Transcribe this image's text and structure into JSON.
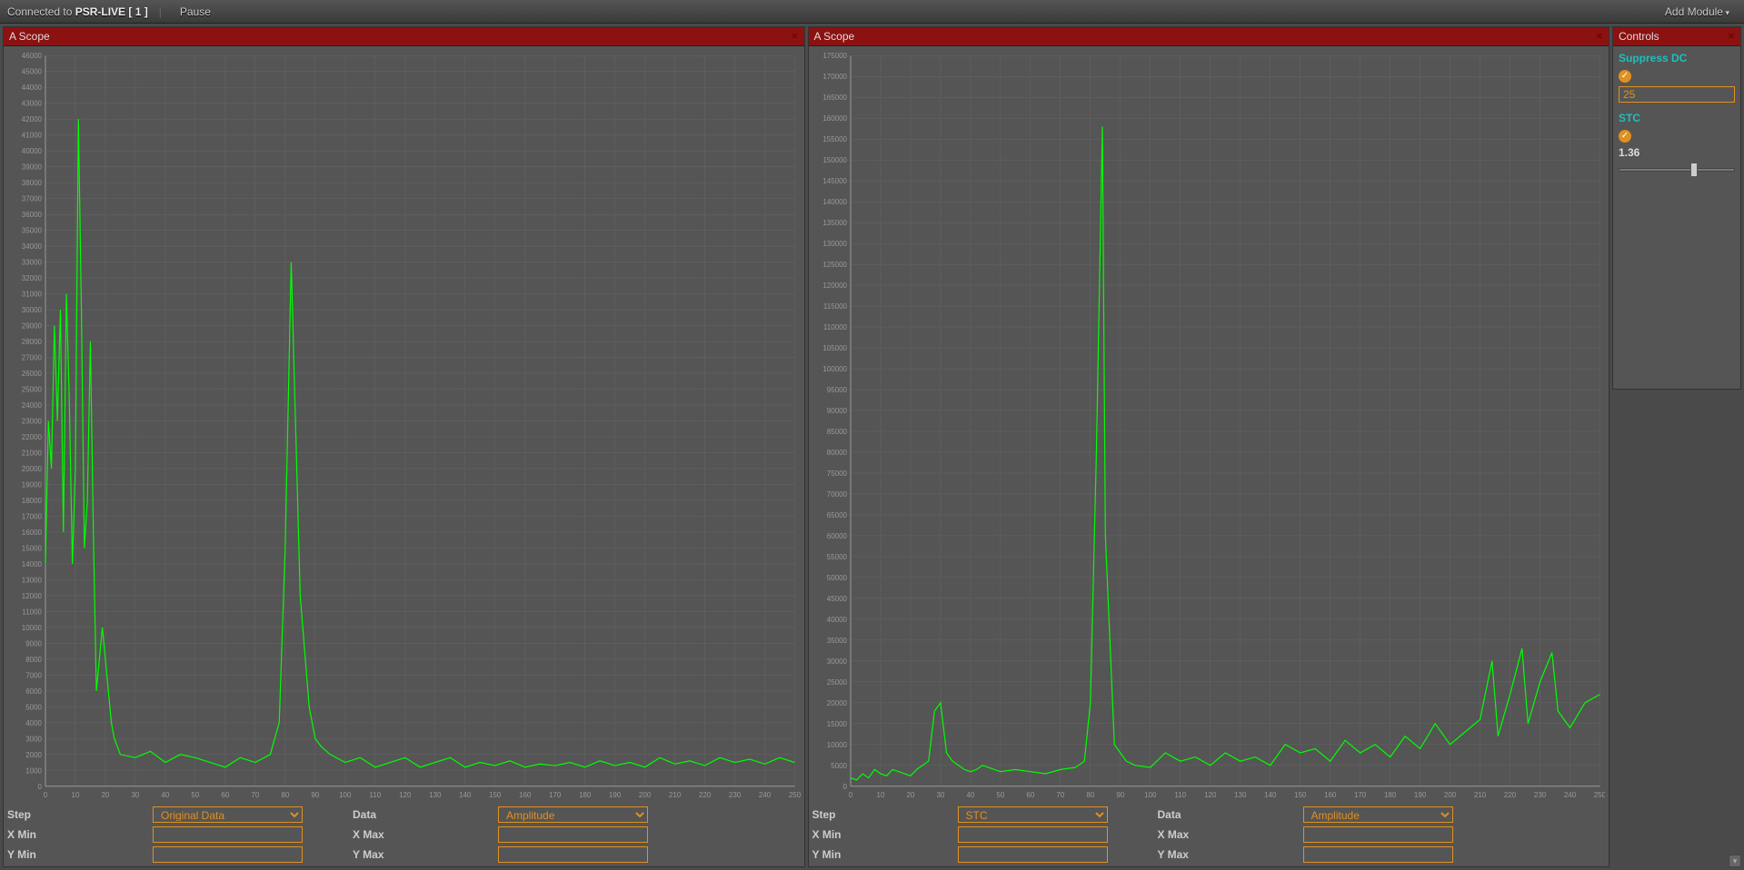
{
  "toolbar": {
    "connected_prefix": "Connected to ",
    "connected_target": "PSR-LIVE [ 1 ]",
    "pause": "Pause",
    "add_module": "Add Module"
  },
  "scope1": {
    "title": "A Scope",
    "type": "line",
    "xmin": 0,
    "xmax": 250,
    "xtick_step": 10,
    "ymin": 0,
    "ymax": 46000,
    "ytick_step": 1000,
    "line_color": "#00ff00",
    "grid_color": "#666666",
    "axis_color": "#999999",
    "tick_font_size": 8,
    "bg_color": "#555555",
    "data_x": [
      0,
      1,
      2,
      3,
      4,
      5,
      6,
      7,
      8,
      9,
      10,
      11,
      12,
      13,
      14,
      15,
      16,
      17,
      18,
      19,
      20,
      21,
      22,
      23,
      24,
      25,
      30,
      35,
      40,
      45,
      50,
      55,
      60,
      65,
      70,
      75,
      78,
      80,
      82,
      85,
      88,
      90,
      92,
      95,
      100,
      105,
      110,
      115,
      120,
      125,
      130,
      135,
      140,
      145,
      150,
      155,
      160,
      165,
      170,
      175,
      180,
      185,
      190,
      195,
      200,
      205,
      210,
      215,
      220,
      225,
      230,
      235,
      240,
      245,
      250
    ],
    "data_y": [
      14000,
      23000,
      20000,
      29000,
      23000,
      30000,
      16000,
      31000,
      24000,
      14000,
      20000,
      42000,
      30000,
      15000,
      18000,
      28000,
      16000,
      6000,
      8000,
      10000,
      8000,
      6000,
      4000,
      3000,
      2500,
      2000,
      1800,
      2200,
      1500,
      2000,
      1800,
      1500,
      1200,
      1800,
      1500,
      2000,
      4000,
      15000,
      33000,
      12000,
      5000,
      3000,
      2500,
      2000,
      1500,
      1800,
      1200,
      1500,
      1800,
      1200,
      1500,
      1800,
      1200,
      1500,
      1300,
      1600,
      1200,
      1400,
      1300,
      1500,
      1200,
      1600,
      1300,
      1500,
      1200,
      1800,
      1400,
      1600,
      1300,
      1800,
      1500,
      1700,
      1400,
      1800,
      1500
    ],
    "form": {
      "step_label": "Step",
      "step_value": "Original Data",
      "data_label": "Data",
      "data_value": "Amplitude",
      "xmin_label": "X Min",
      "xmin_value": "",
      "xmax_label": "X Max",
      "xmax_value": "",
      "ymin_label": "Y Min",
      "ymin_value": "",
      "ymax_label": "Y Max",
      "ymax_value": ""
    }
  },
  "scope2": {
    "title": "A Scope",
    "type": "line",
    "xmin": 0,
    "xmax": 250,
    "xtick_step": 10,
    "ymin": 0,
    "ymax": 175000,
    "ytick_step": 5000,
    "line_color": "#00ff00",
    "grid_color": "#666666",
    "axis_color": "#999999",
    "tick_font_size": 8,
    "bg_color": "#555555",
    "data_x": [
      0,
      2,
      4,
      6,
      8,
      10,
      12,
      14,
      16,
      18,
      20,
      22,
      24,
      26,
      28,
      30,
      32,
      34,
      36,
      38,
      40,
      42,
      44,
      46,
      48,
      50,
      55,
      60,
      65,
      70,
      75,
      78,
      80,
      82,
      84,
      85,
      88,
      90,
      92,
      95,
      100,
      105,
      110,
      115,
      120,
      125,
      130,
      135,
      140,
      145,
      150,
      155,
      160,
      165,
      170,
      175,
      180,
      185,
      190,
      195,
      200,
      205,
      210,
      214,
      216,
      220,
      224,
      226,
      230,
      234,
      236,
      240,
      245,
      250
    ],
    "data_y": [
      2000,
      1500,
      3000,
      2000,
      4000,
      3000,
      2500,
      4000,
      3500,
      3000,
      2500,
      4000,
      5000,
      6000,
      18000,
      20000,
      8000,
      6000,
      5000,
      4000,
      3500,
      4000,
      5000,
      4500,
      4000,
      3500,
      4000,
      3500,
      3000,
      4000,
      4500,
      6000,
      20000,
      80000,
      158000,
      60000,
      10000,
      8000,
      6000,
      5000,
      4500,
      8000,
      6000,
      7000,
      5000,
      8000,
      6000,
      7000,
      5000,
      10000,
      8000,
      9000,
      6000,
      11000,
      8000,
      10000,
      7000,
      12000,
      9000,
      15000,
      10000,
      13000,
      16000,
      30000,
      12000,
      22000,
      33000,
      15000,
      25000,
      32000,
      18000,
      14000,
      20000,
      22000
    ],
    "form": {
      "step_label": "Step",
      "step_value": "STC",
      "data_label": "Data",
      "data_value": "Amplitude",
      "xmin_label": "X Min",
      "xmin_value": "",
      "xmax_label": "X Max",
      "xmax_value": "",
      "ymin_label": "Y Min",
      "ymin_value": "",
      "ymax_label": "Y Max",
      "ymax_value": ""
    }
  },
  "controls": {
    "title": "Controls",
    "suppress_label": "Suppress DC",
    "suppress_checked": true,
    "suppress_value": "25",
    "stc_label": "STC",
    "stc_checked": true,
    "stc_value": "1.36",
    "stc_slider_pos": 0.62
  }
}
